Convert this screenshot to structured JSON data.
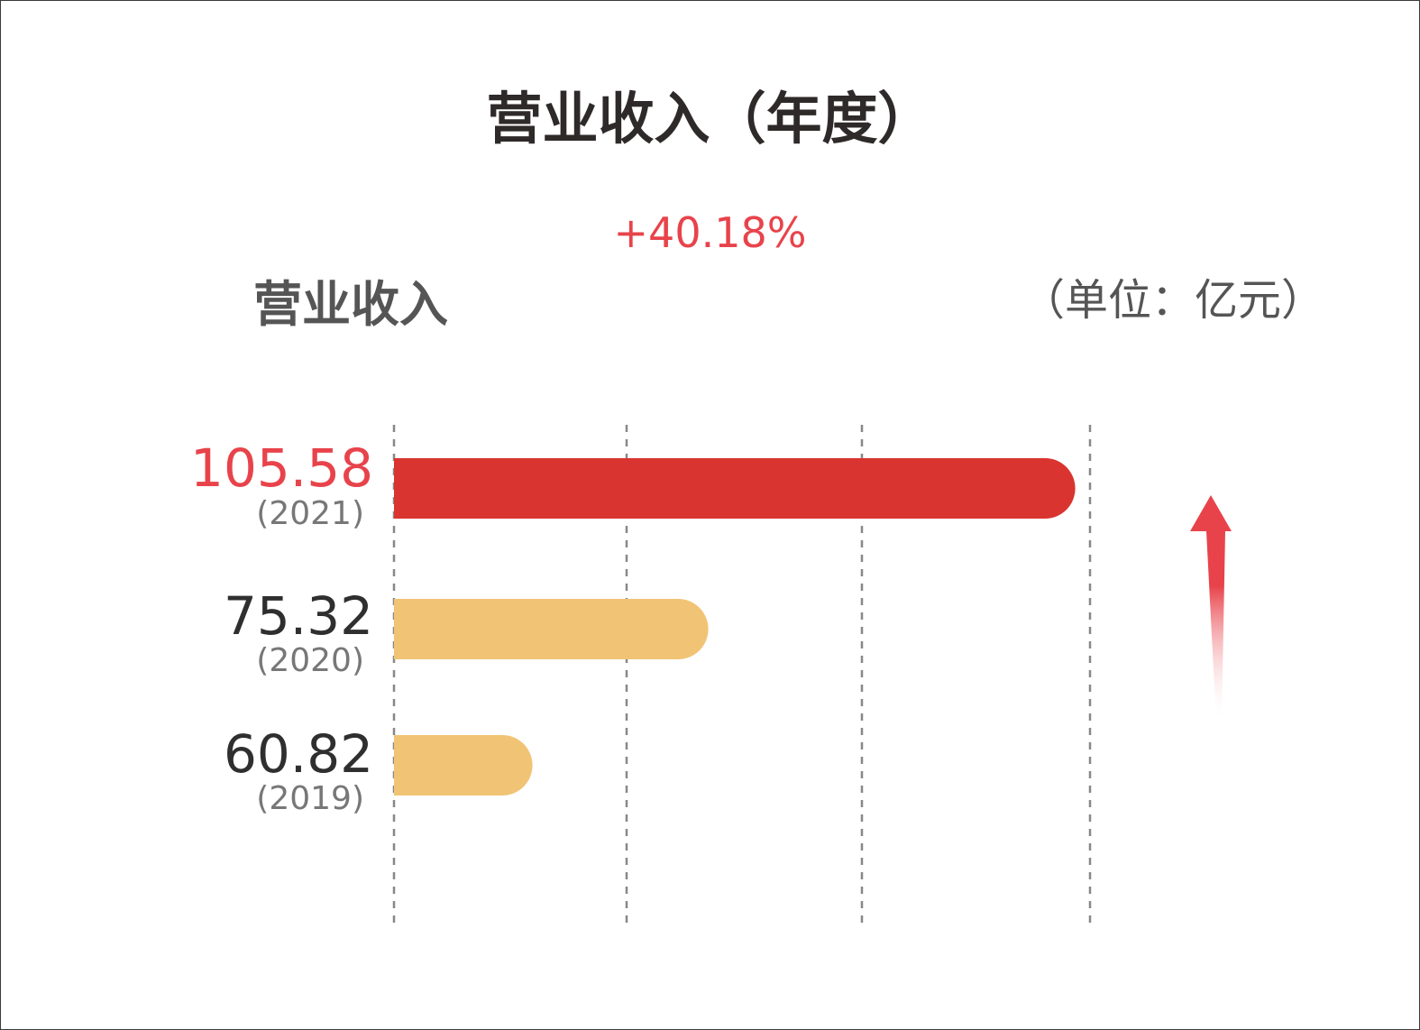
{
  "chart_data": {
    "type": "bar",
    "orientation": "horizontal",
    "title": "营业收入（年度）",
    "subtitle": "+40.18%",
    "ylabel": "营业收入",
    "unit": "（单位：亿元）",
    "categories": [
      "(2021)",
      "(2020)",
      "(2019)"
    ],
    "values": [
      105.58,
      75.32,
      60.82
    ],
    "value_labels": [
      "105.58",
      "75.32",
      "60.82"
    ],
    "xlim": [
      49.4,
      106.8
    ],
    "grid": true,
    "colors": {
      "highlight": "#d9342f",
      "normal": "#f0c474",
      "highlight_label": "#e8434b",
      "arrow": "#e8434b"
    },
    "annotation_icon": "up-arrow-icon"
  }
}
